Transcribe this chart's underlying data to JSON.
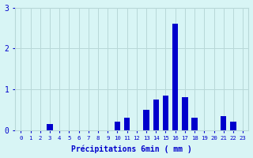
{
  "categories": [
    0,
    1,
    2,
    3,
    4,
    5,
    6,
    7,
    8,
    9,
    10,
    11,
    12,
    13,
    14,
    15,
    16,
    17,
    18,
    19,
    20,
    21,
    22,
    23
  ],
  "values": [
    0,
    0,
    0,
    0.15,
    0,
    0,
    0,
    0,
    0,
    0,
    0.2,
    0.3,
    0,
    0.5,
    0.75,
    0.85,
    2.6,
    0.8,
    0.3,
    0,
    0,
    0.35,
    0.2,
    0
  ],
  "bar_color": "#0000cc",
  "bg_color": "#d8f5f5",
  "grid_color": "#b8d8d8",
  "axis_color": "#0000cc",
  "xlabel": "Précipitations 6min ( mm )",
  "ylim": [
    0,
    3
  ],
  "yticks": [
    0,
    1,
    2,
    3
  ]
}
